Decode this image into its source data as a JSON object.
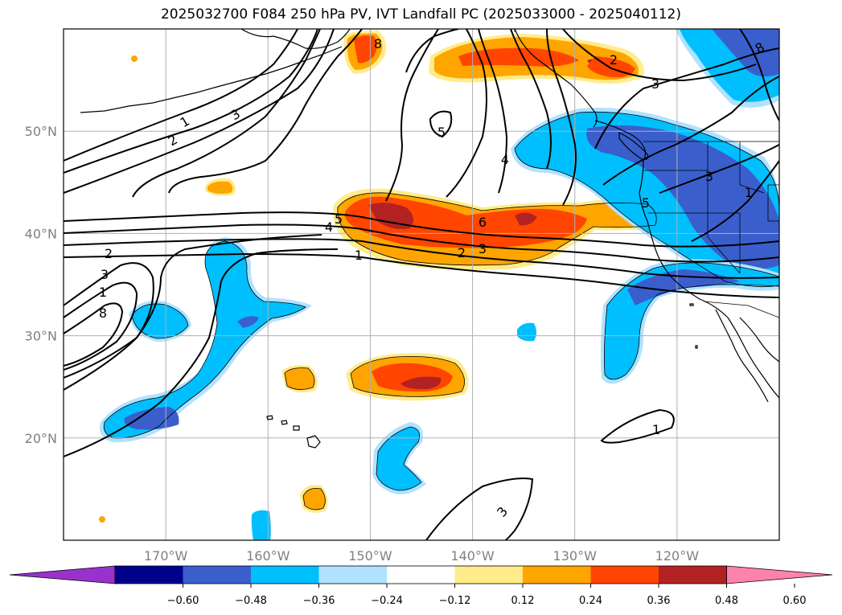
{
  "title": "2025032700 F084 250 hPa PV, IVT Landfall PC (2025033000 - 2025040112)",
  "map": {
    "lon_range": [
      -180,
      -110
    ],
    "lat_range": [
      10,
      60
    ],
    "lat_ticks": [
      "20°N",
      "30°N",
      "40°N",
      "50°N"
    ],
    "lon_ticks": [
      "170°W",
      "160°W",
      "150°W",
      "140°W",
      "130°W",
      "120°W"
    ],
    "grid": true,
    "contour_labels": [
      "1",
      "2",
      "3",
      "8",
      "2",
      "3",
      "1",
      "2",
      "3",
      "4",
      "5",
      "6",
      "2",
      "3",
      "1",
      "8",
      "4",
      "5",
      "3",
      "1",
      "1",
      "3",
      "5",
      "8"
    ]
  },
  "colorbar": {
    "ticks": [
      "−0.60",
      "−0.48",
      "−0.36",
      "−0.24",
      "−0.12",
      "0.12",
      "0.24",
      "0.36",
      "0.48",
      "0.60"
    ],
    "colors": [
      "#9932cc",
      "#00008b",
      "#3a5fcd",
      "#00bfff",
      "#b0e2ff",
      "#ffffff",
      "#ffec8b",
      "#ffa500",
      "#ff4500",
      "#b22222",
      "#ff82ab"
    ],
    "extend": "both"
  },
  "colors": {
    "positive_1": "#ffec8b",
    "positive_2": "#ffa500",
    "positive_3": "#ff4500",
    "positive_4": "#b22222",
    "negative_1": "#b0e2ff",
    "negative_2": "#00bfff",
    "negative_3": "#3a5fcd",
    "grid": "#b0b0b0"
  }
}
